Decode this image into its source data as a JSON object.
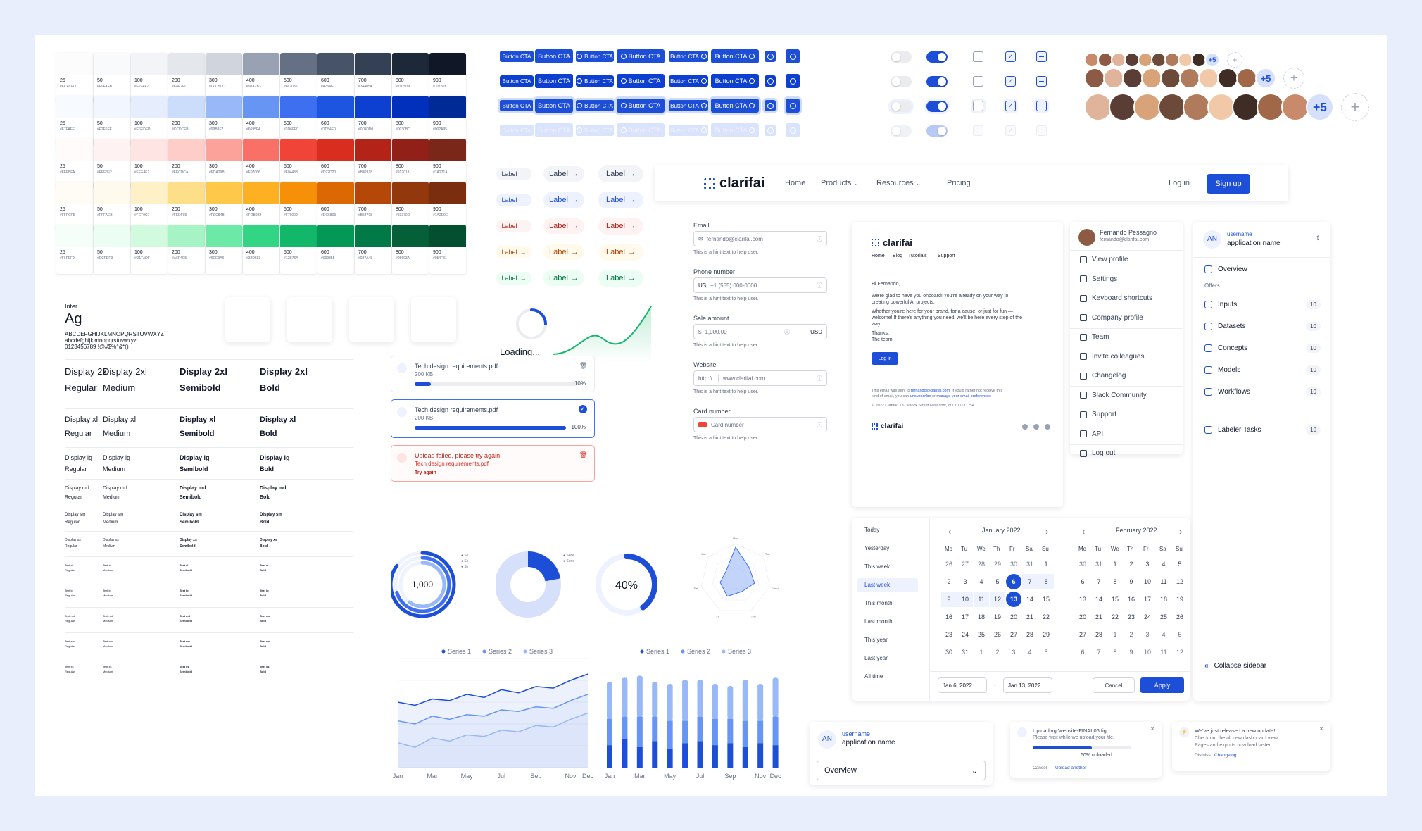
{
  "palette": {
    "steps": [
      "25",
      "50",
      "100",
      "200",
      "300",
      "400",
      "500",
      "600",
      "700",
      "800",
      "900"
    ],
    "rows": [
      {
        "colors": [
          "#FCFCFD",
          "#F9FAFB",
          "#F2F4F7",
          "#E4E7EC",
          "#D0D5DD",
          "#98A2B3",
          "#667085",
          "#475467",
          "#344054",
          "#1D2939",
          "#101828"
        ]
      },
      {
        "colors": [
          "#F7FAFE",
          "#F2F6FE",
          "#E6EDFD",
          "#CCDCFB",
          "#99B8F7",
          "#6695F4",
          "#3D6FF0",
          "#1D54E0",
          "#0D40D0",
          "#0030BC",
          "#002A95"
        ]
      },
      {
        "colors": [
          "#FFFBFA",
          "#FEF3F2",
          "#FEE4E2",
          "#FECDCA",
          "#FDA29B",
          "#F97066",
          "#F04438",
          "#D92D20",
          "#B42318",
          "#912018",
          "#7A271A"
        ]
      },
      {
        "colors": [
          "#FFFCF5",
          "#FFFAEB",
          "#FEF0C7",
          "#FEDF89",
          "#FEC84B",
          "#FDB022",
          "#F79009",
          "#DC6803",
          "#B54708",
          "#93370D",
          "#7A2E0E"
        ]
      },
      {
        "colors": [
          "#F6FEF9",
          "#ECFDF3",
          "#D1FADF",
          "#A6F4C5",
          "#6CE9A6",
          "#32D583",
          "#12B76A",
          "#039855",
          "#027A48",
          "#05603A",
          "#054F31"
        ]
      }
    ]
  },
  "buttons": {
    "cta": "Button CTA"
  },
  "avatars": {
    "more": "+5"
  },
  "labels": {
    "text": "Label"
  },
  "loader": {
    "text": "Loading..."
  },
  "typography": {
    "font_name": "Inter",
    "sample": "Ag",
    "upper": "ABCDEFGHIJKLMNOPQRSTUVWXYZ",
    "lower": "abcdefghijklmnopqrstuvwxyz",
    "digits": "0123456789 !@#$%^&*()",
    "rows": [
      {
        "name": "Display 2xl"
      },
      {
        "name": "Display xl"
      },
      {
        "name": "Display lg"
      },
      {
        "name": "Display md"
      },
      {
        "name": "Display sm"
      },
      {
        "name": "Display xs"
      },
      {
        "name": "Text xl"
      },
      {
        "name": "Text lg"
      },
      {
        "name": "Text md"
      },
      {
        "name": "Text sm"
      },
      {
        "name": "Text xs"
      }
    ],
    "weights": [
      "Regular",
      "Medium",
      "Semibold",
      "Bold"
    ]
  },
  "uploads": [
    {
      "file": "Tech design requirements.pdf",
      "size": "200 KB",
      "pct": "10%",
      "progress": 0.1
    },
    {
      "file": "Tech design requirements.pdf",
      "size": "200 KB",
      "pct": "100%",
      "progress": 1.0
    },
    {
      "error": "Upload failed, please try again",
      "file": "Tech design requirements.pdf",
      "retry": "Try again"
    }
  ],
  "nav": {
    "brand": "clarifai",
    "links": [
      "Home",
      "Products",
      "Resources",
      "Pricing"
    ],
    "login": "Log in",
    "signup": "Sign up"
  },
  "form": {
    "email": {
      "label": "Email",
      "placeholder": "fernando@clarifai.com",
      "hint": "This is a hint text to help user."
    },
    "phone": {
      "label": "Phone number",
      "cc": "US",
      "placeholder": "+1 (555) 000-0000",
      "hint": "This is a hint text to help user."
    },
    "sale": {
      "label": "Sale amount",
      "prefix": "$",
      "value": "1,000.00",
      "currency": "USD",
      "hint": "This is a hint text to help user."
    },
    "website": {
      "label": "Website",
      "prefix": "http://",
      "placeholder": "www.clarifai.com",
      "hint": "This is a hint text to help user."
    },
    "card": {
      "label": "Card number",
      "placeholder": "Card number",
      "hint": "This is a hint text to help user."
    }
  },
  "email": {
    "brand": "clarifai",
    "nav": [
      "Home",
      "Blog",
      "Tutorials",
      "Support"
    ],
    "greeting": "Hi Fernando,",
    "p1": "We're glad to have you onboard! You're already on your way to",
    "p1b": "creating powerful AI projects.",
    "p2": "Whether you're here for your brand, for a cause, or just for fun —",
    "p2b": "welcome! If there's anything you need, we'll be here every step of the",
    "p2c": "way.",
    "thanks": "Thanks,",
    "team": "The team",
    "cta": "Log in",
    "footer1a": "This email was sent to ",
    "footer1b": "fernando@clarifai.com",
    "footer1c": ". If you'd rather not receive this",
    "footer2a": "kind of email, you can ",
    "footer2b": "unsubscribe",
    "footer2c": " or ",
    "footer2d": "manage your email preferences",
    "footer3": "© 2022 Clarifai, 137 Varick Street New York, NY 10013 USA"
  },
  "profile": {
    "name": "Fernando Pessagno",
    "email": "fernando@clarifai.com",
    "items": [
      "View profile",
      "Settings",
      "Keyboard shortcuts",
      "Company profile",
      "Team",
      "Invite colleagues",
      "Changelog",
      "Slack Community",
      "Support",
      "API",
      "Log out"
    ]
  },
  "sidebar": {
    "initials": "AN",
    "user": "username",
    "app": "application name",
    "items": [
      {
        "label": "Overview"
      }
    ],
    "section": "Offers",
    "offers": [
      {
        "label": "Inputs",
        "count": "10"
      },
      {
        "label": "Datasets",
        "count": "10"
      },
      {
        "label": "Concepts",
        "count": "10"
      },
      {
        "label": "Models",
        "count": "10"
      },
      {
        "label": "Workflows",
        "count": "10"
      }
    ],
    "labeler": {
      "label": "Labeler Tasks",
      "count": "10"
    },
    "collapse": "Collapse sidebar"
  },
  "calendar": {
    "presets": [
      "Today",
      "Yesterday",
      "This week",
      "Last week",
      "This month",
      "Last month",
      "This year",
      "Last year",
      "All time"
    ],
    "active_preset": "Last week",
    "weekdays": [
      "Mo",
      "Tu",
      "We",
      "Th",
      "Fr",
      "Sa",
      "Su"
    ],
    "left": {
      "title": "January 2022",
      "days": [
        "26",
        "27",
        "28",
        "29",
        "30",
        "31",
        "1",
        "2",
        "3",
        "4",
        "5",
        "6",
        "7",
        "8",
        "9",
        "10",
        "11",
        "12",
        "13",
        "14",
        "15",
        "16",
        "17",
        "18",
        "19",
        "20",
        "21",
        "22",
        "23",
        "24",
        "25",
        "26",
        "27",
        "28",
        "29",
        "30",
        "31",
        "1",
        "2",
        "3",
        "4",
        "5"
      ]
    },
    "right": {
      "title": "February 2022",
      "days": [
        "30",
        "31",
        "1",
        "2",
        "3",
        "4",
        "5",
        "6",
        "7",
        "8",
        "9",
        "10",
        "11",
        "12",
        "13",
        "14",
        "15",
        "16",
        "17",
        "18",
        "19",
        "20",
        "21",
        "22",
        "23",
        "24",
        "25",
        "26",
        "27",
        "28",
        "1",
        "2",
        "3",
        "4",
        "5",
        "6",
        "7",
        "8",
        "9",
        "10",
        "11",
        "12"
      ]
    },
    "start": "Jan 6, 2022",
    "end": "Jan 13, 2022",
    "cancel": "Cancel",
    "apply": "Apply"
  },
  "charts_small": {
    "ring_value": "1,000",
    "progress_value": "40%",
    "progress_fraction": 0.4,
    "ring_legend": [
      "Series 1",
      "Series 2",
      "Series 3"
    ],
    "donut_legend": [
      "Series 1",
      "Series 2"
    ],
    "radar_labels": [
      "Mon",
      "Tue",
      "Wed",
      "Thu",
      "Fri",
      "Sat",
      "Sun"
    ]
  },
  "chart_data": [
    {
      "type": "line",
      "legend": [
        "Series 1",
        "Series 2",
        "Series 3"
      ],
      "categories": [
        "Jan",
        "Feb",
        "Mar",
        "Apr",
        "May",
        "Jun",
        "Jul",
        "Aug",
        "Sep",
        "Oct",
        "Nov",
        "Dec"
      ],
      "series": [
        {
          "name": "Series 1",
          "values": [
            42,
            40,
            44,
            43,
            47,
            45,
            50,
            48,
            52,
            51,
            56,
            60
          ]
        },
        {
          "name": "Series 2",
          "values": [
            30,
            28,
            33,
            31,
            34,
            33,
            37,
            36,
            39,
            38,
            43,
            47
          ]
        },
        {
          "name": "Series 3",
          "values": [
            16,
            13,
            19,
            17,
            21,
            20,
            24,
            23,
            27,
            26,
            31,
            35
          ]
        }
      ],
      "xticks": [
        "Jan",
        "Mar",
        "May",
        "Jul",
        "Sep",
        "Nov",
        "Dec"
      ]
    },
    {
      "type": "bar",
      "legend": [
        "Series 1",
        "Series 2",
        "Series 3"
      ],
      "categories": [
        "Jan",
        "Feb",
        "Mar",
        "Apr",
        "May",
        "Jun",
        "Jul",
        "Aug",
        "Sep",
        "Oct",
        "Nov",
        "Dec"
      ],
      "series": [
        {
          "name": "Series 1",
          "values": [
            22,
            28,
            20,
            26,
            18,
            24,
            26,
            22,
            24,
            20,
            24,
            22
          ]
        },
        {
          "name": "Series 2",
          "values": [
            26,
            22,
            30,
            24,
            28,
            22,
            24,
            26,
            24,
            26,
            22,
            28
          ]
        },
        {
          "name": "Series 3",
          "values": [
            36,
            38,
            40,
            34,
            36,
            40,
            36,
            34,
            32,
            40,
            36,
            38
          ]
        }
      ],
      "xticks": [
        "Jan",
        "Mar",
        "May",
        "Jul",
        "Sep",
        "Nov",
        "Dec"
      ]
    }
  ],
  "select": {
    "initials": "AN",
    "user": "username",
    "app": "application name",
    "value": "Overview"
  },
  "toast_upload": {
    "title": "Uploading 'website-FINAL06.fig'",
    "sub": "Please wait while we upload your file.",
    "pct": "60% uploaded...",
    "progress": 0.6,
    "cancel": "Cancel",
    "another": "Upload another"
  },
  "toast_update": {
    "title": "We've just released a new update!",
    "sub1": "Check out the all new dashboard view.",
    "sub2": "Pages and exports now load faster.",
    "dismiss": "Dismiss",
    "changelog": "Changelog"
  },
  "colors": {
    "primary": "#1D4ED8",
    "bg": "#E8EEFB"
  }
}
